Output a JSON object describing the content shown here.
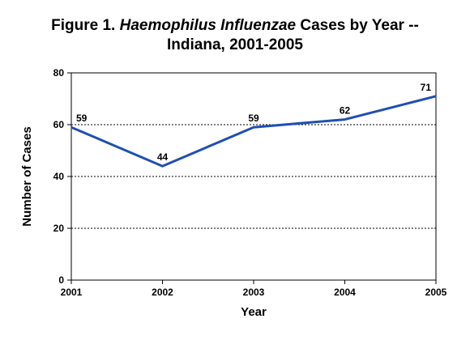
{
  "chart_data": {
    "type": "line",
    "title_line1_prefix": "Figure 1.  ",
    "title_line1_italic": "Haemophilus Influenzae",
    "title_line1_suffix": " Cases by Year --",
    "title_line2": "Indiana, 2001-2005",
    "xlabel": "Year",
    "ylabel": "Number of Cases",
    "x": [
      "2001",
      "2002",
      "2003",
      "2004",
      "2005"
    ],
    "series": [
      {
        "values": [
          59,
          44,
          59,
          62,
          71
        ],
        "color": "#1f4fb4"
      }
    ],
    "data_labels": [
      "59",
      "44",
      "59",
      "62",
      "71"
    ],
    "ylim": [
      0,
      80
    ],
    "yticks": [
      0,
      20,
      40,
      60,
      80
    ],
    "grid": "horizontal dotted",
    "legend": "none"
  }
}
